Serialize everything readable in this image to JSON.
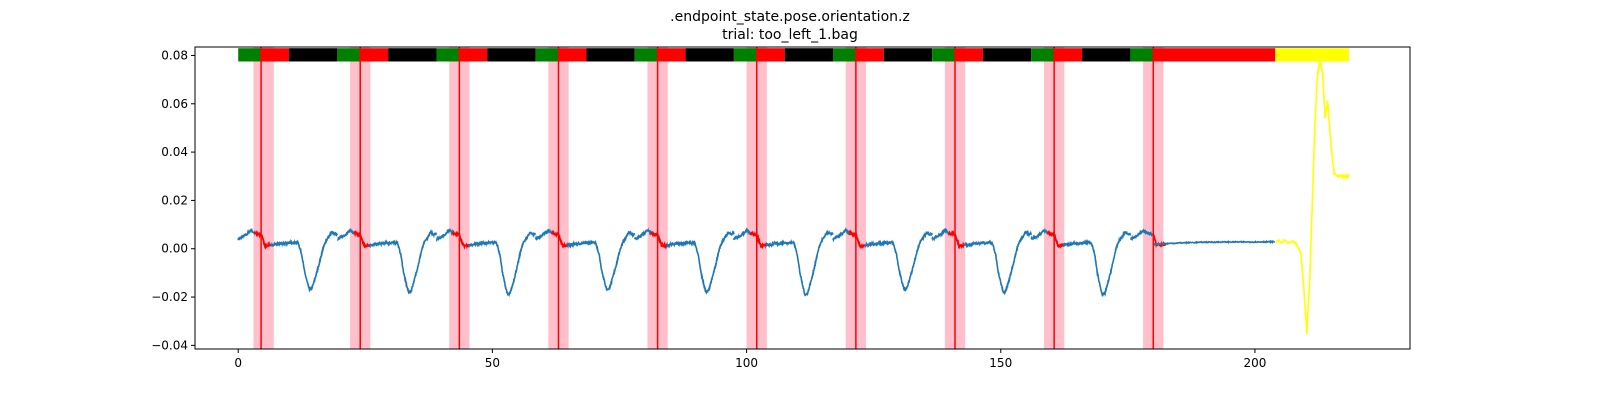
{
  "chart_data": {
    "type": "line",
    "title": ".endpoint_state.pose.orientation.z",
    "subtitle": "trial: too_left_1.bag",
    "xlabel": "",
    "ylabel": "",
    "xlim": [
      -8.5,
      230.5
    ],
    "ylim": [
      -0.0415,
      0.0835
    ],
    "xticks": [
      0,
      50,
      100,
      150,
      200
    ],
    "xtick_labels": [
      "0",
      "50",
      "100",
      "150",
      "200"
    ],
    "yticks": [
      -0.04,
      -0.02,
      0.0,
      0.02,
      0.04,
      0.06,
      0.08
    ],
    "ytick_labels": [
      "−0.04",
      "−0.02",
      "0.00",
      "0.02",
      "0.04",
      "0.06",
      "0.08"
    ],
    "grid": false,
    "colors": {
      "signal": "#1f77b4",
      "contact": "#ff0000",
      "tail": "#ffff00",
      "band": "#ffc0cb",
      "state_green": "#008000",
      "state_red": "#ff0000",
      "state_black": "#000000",
      "state_yellow": "#ffff00"
    },
    "state_bar": {
      "y_range": [
        0.0775,
        0.083
      ],
      "segments": [
        {
          "start": 0,
          "end": 4.5,
          "state": "green"
        },
        {
          "start": 4.5,
          "end": 10,
          "state": "red"
        },
        {
          "start": 10,
          "end": 19.5,
          "state": "black"
        },
        {
          "start": 19.5,
          "end": 24,
          "state": "green"
        },
        {
          "start": 24,
          "end": 29.5,
          "state": "red"
        },
        {
          "start": 29.5,
          "end": 39,
          "state": "black"
        },
        {
          "start": 39,
          "end": 43.5,
          "state": "green"
        },
        {
          "start": 43.5,
          "end": 49,
          "state": "red"
        },
        {
          "start": 49,
          "end": 58.5,
          "state": "black"
        },
        {
          "start": 58.5,
          "end": 63,
          "state": "green"
        },
        {
          "start": 63,
          "end": 68.5,
          "state": "red"
        },
        {
          "start": 68.5,
          "end": 78,
          "state": "black"
        },
        {
          "start": 78,
          "end": 82.5,
          "state": "green"
        },
        {
          "start": 82.5,
          "end": 88,
          "state": "red"
        },
        {
          "start": 88,
          "end": 97.5,
          "state": "black"
        },
        {
          "start": 97.5,
          "end": 102,
          "state": "green"
        },
        {
          "start": 102,
          "end": 107.5,
          "state": "red"
        },
        {
          "start": 107.5,
          "end": 117,
          "state": "black"
        },
        {
          "start": 117,
          "end": 121.5,
          "state": "green"
        },
        {
          "start": 121.5,
          "end": 127,
          "state": "red"
        },
        {
          "start": 127,
          "end": 136.5,
          "state": "black"
        },
        {
          "start": 136.5,
          "end": 141,
          "state": "green"
        },
        {
          "start": 141,
          "end": 146.5,
          "state": "red"
        },
        {
          "start": 146.5,
          "end": 156,
          "state": "black"
        },
        {
          "start": 156,
          "end": 160.5,
          "state": "green"
        },
        {
          "start": 160.5,
          "end": 166,
          "state": "red"
        },
        {
          "start": 166,
          "end": 175.5,
          "state": "black"
        },
        {
          "start": 175.5,
          "end": 180,
          "state": "green"
        },
        {
          "start": 180,
          "end": 204,
          "state": "red"
        },
        {
          "start": 204,
          "end": 218.5,
          "state": "yellow"
        }
      ]
    },
    "contact_events": [
      {
        "x": 4.5,
        "band": [
          3,
          7
        ]
      },
      {
        "x": 24,
        "band": [
          22,
          26
        ]
      },
      {
        "x": 43.5,
        "band": [
          41.5,
          45.5
        ]
      },
      {
        "x": 63,
        "band": [
          61,
          65
        ]
      },
      {
        "x": 82.5,
        "band": [
          80.5,
          84.5
        ]
      },
      {
        "x": 102,
        "band": [
          100,
          104
        ]
      },
      {
        "x": 121.5,
        "band": [
          119.5,
          123.5
        ]
      },
      {
        "x": 141,
        "band": [
          139,
          143
        ]
      },
      {
        "x": 160.5,
        "band": [
          158.5,
          162.5
        ]
      },
      {
        "x": 180,
        "band": [
          178,
          182
        ]
      }
    ],
    "cycle_template": {
      "period": 19.5,
      "points": [
        [
          0,
          0.004
        ],
        [
          1,
          0.005
        ],
        [
          2,
          0.0065
        ],
        [
          2.5,
          0.0078
        ],
        [
          3.2,
          0.0064
        ],
        [
          4.5,
          0.0058
        ],
        [
          5.3,
          0.0012
        ],
        [
          6.5,
          0.0015
        ],
        [
          8,
          0.002
        ],
        [
          10,
          0.0024
        ],
        [
          11.2,
          0.0026
        ],
        [
          11.8,
          0.0025
        ],
        [
          12.5,
          -0.0025
        ],
        [
          13,
          -0.0095
        ],
        [
          13.6,
          -0.015
        ],
        [
          14,
          -0.018
        ],
        [
          14.5,
          -0.0175
        ],
        [
          15.2,
          -0.0125
        ],
        [
          16,
          -0.006
        ],
        [
          16.6,
          -0.0005
        ],
        [
          17.2,
          0.003
        ],
        [
          17.8,
          0.0048
        ],
        [
          18.4,
          0.0068
        ],
        [
          19,
          0.006
        ],
        [
          19.5,
          0.0062
        ]
      ]
    },
    "series": [
      {
        "x": [
          180,
          185,
          190,
          195,
          200,
          204
        ],
        "y": [
          0.0018,
          0.0024,
          0.0027,
          0.0028,
          0.0028,
          0.0029
        ]
      },
      {
        "x": [
          204,
          206,
          208,
          209,
          209.6,
          210.2,
          210.8,
          211.3,
          211.8,
          212.3,
          212.8,
          213.3,
          213.8,
          214.3,
          215,
          215.6,
          216.3,
          217,
          217.6,
          218.5
        ],
        "y": [
          0.003,
          0.003,
          0.0025,
          -0.0015,
          -0.016,
          -0.035,
          -0.012,
          0.02,
          0.052,
          0.072,
          0.0775,
          0.073,
          0.054,
          0.061,
          0.042,
          0.031,
          0.0305,
          0.0302,
          0.03,
          0.03
        ]
      }
    ]
  }
}
